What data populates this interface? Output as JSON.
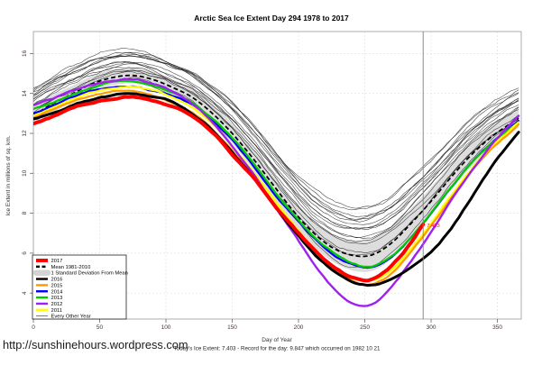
{
  "title": "Arctic Sea Ice Extent Day 294 1978 to 2017",
  "footer": {
    "xlabel": "Day of Year",
    "status_line": "Today's Ice Extent: 7.403  - Record for the day: 9.847 which occurred on 1982 10 21",
    "url": "http://sunshinehours.wordpress.com"
  },
  "legend": {
    "items": [
      {
        "label": "2017",
        "color": "#ff0000",
        "style": "thick"
      },
      {
        "label": "Mean 1981-2010",
        "color": "#000000",
        "style": "dashed"
      },
      {
        "label": "1 Standard Deviation From Mean",
        "color": "#d3d3d3",
        "style": "band"
      },
      {
        "label": "2016",
        "color": "#000000",
        "style": "medium"
      },
      {
        "label": "2015",
        "color": "#ff9900",
        "style": "medium"
      },
      {
        "label": "2014",
        "color": "#0000ff",
        "style": "medium"
      },
      {
        "label": "2013",
        "color": "#00cc00",
        "style": "medium"
      },
      {
        "label": "2012",
        "color": "#a020f0",
        "style": "medium"
      },
      {
        "label": "2011",
        "color": "#ffff00",
        "style": "medium"
      },
      {
        "label": "Every Other Year",
        "color": "#555555",
        "style": "thin"
      }
    ]
  },
  "chart_data": {
    "type": "line",
    "title": "Arctic Sea Ice Extent Day 294 1978 to 2017",
    "xlabel": "Day of Year",
    "ylabel": "Ice Extent in millions of sq. km.",
    "xlim": [
      0,
      368
    ],
    "ylim": [
      2.7,
      17.1
    ],
    "xticks": [
      0,
      50,
      100,
      150,
      200,
      250,
      300,
      350
    ],
    "yticks": [
      4,
      6,
      8,
      10,
      12,
      14,
      16
    ],
    "grid": true,
    "grid_color": "#e2e2e2",
    "legend_position": "bottom-left",
    "marker_line_day": 294,
    "marker_line_color": "#808080",
    "annotation": {
      "text": "7.403",
      "day": 294,
      "value": 7.403,
      "color": "#ff0000"
    },
    "sample_days": [
      0,
      15,
      30,
      45,
      60,
      75,
      90,
      105,
      120,
      135,
      150,
      165,
      180,
      195,
      210,
      225,
      240,
      255,
      270,
      285,
      300,
      315,
      330,
      345,
      360
    ],
    "mean": {
      "label": "Mean 1981-2010",
      "color": "#000000",
      "dashed": true,
      "width": 1.8,
      "values": [
        12.9,
        13.5,
        14.0,
        14.5,
        14.8,
        14.9,
        14.7,
        14.3,
        13.8,
        13.0,
        12.0,
        10.8,
        9.5,
        8.2,
        7.1,
        6.3,
        5.9,
        5.9,
        6.5,
        7.5,
        8.6,
        9.8,
        10.9,
        11.8,
        12.5
      ]
    },
    "std_band": {
      "label": "1 Standard Deviation From Mean",
      "color": "#d9d9d9",
      "values": [
        0.45,
        0.45,
        0.4,
        0.4,
        0.4,
        0.4,
        0.4,
        0.4,
        0.45,
        0.5,
        0.5,
        0.55,
        0.6,
        0.6,
        0.65,
        0.7,
        0.75,
        0.8,
        0.8,
        0.75,
        0.7,
        0.65,
        0.6,
        0.55,
        0.5
      ]
    },
    "years": [
      {
        "name": "2014",
        "color": "#0000ff",
        "width": 2.2,
        "values": [
          13.0,
          13.4,
          13.8,
          14.1,
          14.3,
          14.4,
          14.2,
          13.9,
          13.4,
          12.6,
          11.6,
          10.4,
          9.1,
          7.9,
          6.8,
          5.9,
          5.4,
          5.2,
          5.7,
          6.7,
          7.9,
          9.2,
          10.4,
          11.4,
          12.2
        ]
      },
      {
        "name": "2013",
        "color": "#00cc00",
        "width": 2.2,
        "values": [
          13.2,
          13.5,
          13.9,
          14.2,
          14.5,
          14.5,
          14.3,
          14.0,
          13.5,
          12.7,
          11.7,
          10.5,
          9.2,
          8.0,
          6.9,
          6.1,
          5.5,
          5.3,
          5.8,
          6.8,
          8.0,
          9.3,
          10.5,
          11.5,
          12.3
        ]
      },
      {
        "name": "2011",
        "color": "#ffff00",
        "width": 2.2,
        "values": [
          12.9,
          13.3,
          13.7,
          14.0,
          14.2,
          14.3,
          14.1,
          13.7,
          13.2,
          12.4,
          11.3,
          10.1,
          8.8,
          7.5,
          6.3,
          5.3,
          4.7,
          4.6,
          5.1,
          6.2,
          7.5,
          8.9,
          10.2,
          11.3,
          12.2
        ]
      },
      {
        "name": "2015",
        "color": "#ff9900",
        "width": 2.2,
        "values": [
          12.8,
          13.2,
          13.6,
          13.9,
          14.1,
          14.2,
          14.0,
          13.6,
          13.1,
          12.3,
          11.2,
          10.0,
          8.7,
          7.4,
          6.2,
          5.3,
          4.7,
          4.5,
          5.0,
          6.1,
          7.4,
          8.8,
          10.1,
          11.2,
          12.1
        ]
      },
      {
        "name": "2012",
        "color": "#a020f0",
        "width": 2.4,
        "values": [
          13.4,
          13.7,
          14.1,
          14.4,
          14.6,
          14.7,
          14.5,
          14.1,
          13.5,
          12.6,
          11.4,
          10.1,
          8.6,
          7.2,
          5.7,
          4.4,
          3.6,
          3.5,
          4.4,
          5.7,
          7.1,
          8.6,
          10.0,
          11.3,
          12.4
        ]
      },
      {
        "name": "2016",
        "color": "#000000",
        "width": 3.0,
        "values": [
          12.7,
          13.0,
          13.4,
          13.7,
          13.9,
          14.0,
          13.8,
          13.5,
          12.9,
          12.1,
          11.0,
          9.8,
          8.5,
          7.2,
          6.0,
          5.1,
          4.5,
          4.3,
          4.6,
          5.2,
          6.0,
          7.2,
          8.7,
          10.2,
          11.5
        ]
      },
      {
        "name": "2017",
        "color": "#ff0000",
        "width": 4.0,
        "values": [
          12.5,
          12.9,
          13.3,
          13.6,
          13.8,
          13.9,
          13.7,
          13.4,
          12.9,
          12.1,
          11.0,
          9.9,
          8.6,
          7.4,
          6.3,
          5.4,
          4.8,
          4.7,
          5.3,
          6.5
        ],
        "last_point": {
          "day": 294,
          "value": 7.403
        }
      }
    ],
    "other_years": {
      "label": "Every Other Year",
      "color": "#1a1a1a",
      "width": 0.55,
      "years": [
        1978,
        1980,
        1982,
        1984,
        1986,
        1988,
        1990,
        1992,
        1994,
        1996,
        1998,
        2000,
        2002,
        2004,
        2006,
        2008,
        2010
      ],
      "offsets_from_mean": [
        1.35,
        1.2,
        1.3,
        1.05,
        1.15,
        1.0,
        0.75,
        0.95,
        0.85,
        0.7,
        0.55,
        0.5,
        0.35,
        0.25,
        -0.05,
        0.1,
        -0.25
      ],
      "summer_weight": [
        0,
        0,
        0,
        0,
        0,
        0,
        0,
        0,
        0.05,
        0.1,
        0.2,
        0.3,
        0.4,
        0.5,
        0.6,
        0.7,
        0.75,
        0.8,
        0.7,
        0.6,
        0.5,
        0.4,
        0.3,
        0.2,
        0.1
      ]
    }
  }
}
